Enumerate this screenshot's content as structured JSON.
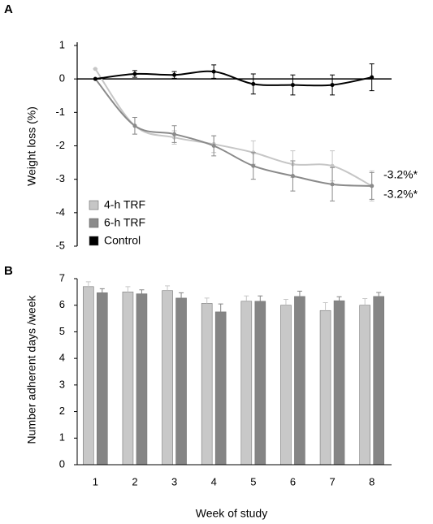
{
  "chart_data": [
    {
      "type": "line",
      "panel_label": "A",
      "y_label": "Weight loss (%)",
      "x": [
        1,
        2,
        3,
        4,
        5,
        6,
        7,
        8
      ],
      "xlim": [
        0.5,
        8.5
      ],
      "ylim": [
        -5,
        1
      ],
      "yticks": [
        1,
        0,
        -1,
        -2,
        -3,
        -4,
        -5
      ],
      "legend": "lower left",
      "series": [
        {
          "name": "4-h TRF",
          "color": "#c6c6c6",
          "values": [
            0.3,
            -1.4,
            -1.75,
            -1.95,
            -2.2,
            -2.55,
            -2.6,
            -3.2
          ],
          "errors": [
            0,
            0.25,
            0.2,
            0.25,
            0.35,
            0.4,
            0.45,
            0.45
          ]
        },
        {
          "name": "6-h TRF",
          "color": "#8a8a8a",
          "values": [
            0.0,
            -1.4,
            -1.65,
            -2.0,
            -2.6,
            -2.9,
            -3.15,
            -3.2
          ],
          "errors": [
            0,
            0.25,
            0.25,
            0.3,
            0.4,
            0.45,
            0.5,
            0.4
          ]
        },
        {
          "name": "Control",
          "color": "#000000",
          "values": [
            0.0,
            0.15,
            0.12,
            0.22,
            -0.15,
            -0.18,
            -0.18,
            0.05
          ],
          "errors": [
            0,
            0.1,
            0.1,
            0.2,
            0.3,
            0.3,
            0.3,
            0.4
          ]
        }
      ],
      "annotations": [
        "-3.2%*",
        "-3.2%*"
      ]
    },
    {
      "type": "bar",
      "panel_label": "B",
      "y_label": "Number adherent days /week",
      "x_label": "Week of study",
      "categories": [
        "1",
        "2",
        "3",
        "4",
        "5",
        "6",
        "7",
        "8"
      ],
      "ylim": [
        0,
        7
      ],
      "yticks": [
        0,
        1,
        2,
        3,
        4,
        5,
        6,
        7
      ],
      "series": [
        {
          "name": "4-h TRF",
          "color": "#c8c8c8",
          "values": [
            6.7,
            6.5,
            6.55,
            6.07,
            6.15,
            6.0,
            5.8,
            6.0
          ],
          "errors": [
            0.18,
            0.2,
            0.18,
            0.2,
            0.2,
            0.22,
            0.3,
            0.25
          ]
        },
        {
          "name": "6-h TRF",
          "color": "#858585",
          "values": [
            6.47,
            6.43,
            6.27,
            5.75,
            6.15,
            6.33,
            6.17,
            6.33
          ],
          "errors": [
            0.15,
            0.15,
            0.2,
            0.3,
            0.2,
            0.2,
            0.15,
            0.15
          ]
        }
      ]
    }
  ]
}
